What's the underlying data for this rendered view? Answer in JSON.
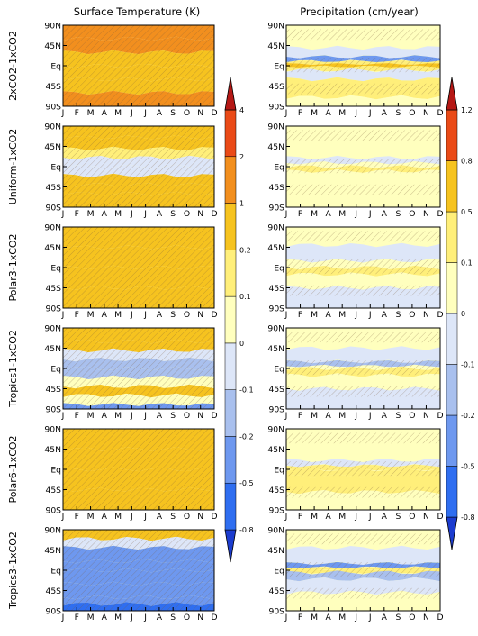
{
  "figure": {
    "col_titles": [
      "Surface Temperature (K)",
      "Precipitation (cm/year)"
    ],
    "row_labels": [
      "2xCO2-1xCO2",
      "Uniform-1xCO2",
      "Polar3-1xCO2",
      "Tropics1-1xCO2",
      "Polar6-1xCO2",
      "Tropics3-1xCO2"
    ]
  },
  "chart_data": [
    {
      "type": "heatmap",
      "title": "Surface Temperature (K)",
      "x_ticks": [
        "J",
        "F",
        "M",
        "A",
        "M",
        "J",
        "J",
        "A",
        "S",
        "O",
        "N",
        "D"
      ],
      "y_ticks": [
        "90N",
        "45N",
        "Eq",
        "45S",
        "90S"
      ],
      "colorbar": {
        "levels": [
          -0.8,
          -0.5,
          -0.2,
          -0.1,
          0,
          0.1,
          0.2,
          1,
          2,
          4
        ],
        "labels": [
          "-0.8",
          "-0.5",
          "-0.2",
          "-0.1",
          "0",
          "0.1",
          "0.2",
          "1",
          "2",
          "4"
        ],
        "colors": [
          "#1c3ccf",
          "#2f6ef0",
          "#6e98ef",
          "#a9c0ee",
          "#dde6f8",
          "#ffffbe",
          "#ffef7a",
          "#f6c31f",
          "#f28f1e",
          "#ea4a17",
          "#b51815"
        ]
      },
      "panels": [
        {
          "row": "2xCO2-1xCO2",
          "bands": [
            {
              "lat": 90,
              "v": 1.6
            },
            {
              "lat": 60,
              "v": 1.3
            },
            {
              "lat": 30,
              "v": 0.9
            },
            {
              "lat": 0,
              "v": 0.7
            },
            {
              "lat": -30,
              "v": 0.8
            },
            {
              "lat": -60,
              "v": 1.1
            },
            {
              "lat": -90,
              "v": 2.2
            }
          ]
        },
        {
          "row": "Uniform-1xCO2",
          "bands": [
            {
              "lat": 90,
              "v": 1.3
            },
            {
              "lat": 65,
              "v": 0.5
            },
            {
              "lat": 40,
              "v": 0.25
            },
            {
              "lat": 20,
              "v": 0.08
            },
            {
              "lat": 0,
              "v": -0.12
            },
            {
              "lat": -20,
              "v": 0.05
            },
            {
              "lat": -40,
              "v": 0.4
            },
            {
              "lat": -60,
              "v": 0.6
            },
            {
              "lat": -90,
              "v": 0.3
            }
          ]
        },
        {
          "row": "Polar3-1xCO2",
          "bands": [
            {
              "lat": 90,
              "v": 0.6
            },
            {
              "lat": 45,
              "v": 0.5
            },
            {
              "lat": 0,
              "v": 0.45
            },
            {
              "lat": -45,
              "v": 0.5
            },
            {
              "lat": -90,
              "v": 0.6
            }
          ]
        },
        {
          "row": "Tropics1-1xCO2",
          "bands": [
            {
              "lat": 90,
              "v": 1.3
            },
            {
              "lat": 60,
              "v": 0.4
            },
            {
              "lat": 40,
              "v": 0.05
            },
            {
              "lat": 20,
              "v": -0.15
            },
            {
              "lat": 0,
              "v": -0.12
            },
            {
              "lat": -20,
              "v": -0.1
            },
            {
              "lat": -40,
              "v": 0.15
            },
            {
              "lat": -60,
              "v": 0.3
            },
            {
              "lat": -80,
              "v": -0.1
            },
            {
              "lat": -90,
              "v": -0.4
            }
          ]
        },
        {
          "row": "Polar6-1xCO2",
          "bands": [
            {
              "lat": 90,
              "v": 1.0
            },
            {
              "lat": 45,
              "v": 0.7
            },
            {
              "lat": 0,
              "v": 0.6
            },
            {
              "lat": -45,
              "v": 0.7
            },
            {
              "lat": -90,
              "v": 1.0
            }
          ]
        },
        {
          "row": "Tropics3-1xCO2",
          "bands": [
            {
              "lat": 90,
              "v": 1.2
            },
            {
              "lat": 70,
              "v": 0.1
            },
            {
              "lat": 50,
              "v": -0.3
            },
            {
              "lat": 20,
              "v": -0.35
            },
            {
              "lat": 0,
              "v": -0.35
            },
            {
              "lat": -30,
              "v": -0.35
            },
            {
              "lat": -60,
              "v": -0.3
            },
            {
              "lat": -75,
              "v": -0.5
            },
            {
              "lat": -90,
              "v": -0.85
            }
          ]
        }
      ]
    },
    {
      "type": "heatmap",
      "title": "Precipitation (cm/year)",
      "x_ticks": [
        "J",
        "F",
        "M",
        "A",
        "M",
        "J",
        "J",
        "A",
        "S",
        "O",
        "N",
        "D"
      ],
      "y_ticks": [
        "90N",
        "45N",
        "Eq",
        "45S",
        "90S"
      ],
      "colorbar": {
        "levels": [
          -0.8,
          -0.5,
          -0.2,
          -0.1,
          0,
          0.1,
          0.5,
          0.8,
          1.2
        ],
        "labels": [
          "-0.8",
          "-0.5",
          "-0.2",
          "-0.1",
          "0",
          "0.1",
          "0.5",
          "0.8",
          "1.2"
        ],
        "colors": [
          "#1c3ccf",
          "#2f6ef0",
          "#6e98ef",
          "#a9c0ee",
          "#dde6f8",
          "#ffffbe",
          "#ffef7a",
          "#f6c31f",
          "#ea4a17",
          "#b51815"
        ]
      },
      "panels": [
        {
          "row": "2xCO2-1xCO2",
          "bands": [
            {
              "lat": 90,
              "v": 0.05
            },
            {
              "lat": 60,
              "v": 0.08
            },
            {
              "lat": 40,
              "v": -0.05
            },
            {
              "lat": 20,
              "v": -0.15
            },
            {
              "lat": 10,
              "v": -0.3
            },
            {
              "lat": 4,
              "v": 0.9
            },
            {
              "lat": -2,
              "v": 0.6
            },
            {
              "lat": -10,
              "v": -0.2
            },
            {
              "lat": -30,
              "v": 0.05
            },
            {
              "lat": -50,
              "v": 0.3
            },
            {
              "lat": -70,
              "v": 0.1
            },
            {
              "lat": -90,
              "v": 0.05
            }
          ]
        },
        {
          "row": "Uniform-1xCO2",
          "bands": [
            {
              "lat": 90,
              "v": 0.05
            },
            {
              "lat": 50,
              "v": 0.08
            },
            {
              "lat": 20,
              "v": 0.03
            },
            {
              "lat": 8,
              "v": -0.2
            },
            {
              "lat": 0,
              "v": 0.3
            },
            {
              "lat": -10,
              "v": 0.1
            },
            {
              "lat": -40,
              "v": 0.05
            },
            {
              "lat": -90,
              "v": 0.02
            }
          ]
        },
        {
          "row": "Polar3-1xCO2",
          "bands": [
            {
              "lat": 90,
              "v": 0.03
            },
            {
              "lat": 50,
              "v": 0.05
            },
            {
              "lat": 15,
              "v": -0.08
            },
            {
              "lat": 0,
              "v": 0.15
            },
            {
              "lat": -15,
              "v": 0.08
            },
            {
              "lat": -45,
              "v": -0.08
            },
            {
              "lat": -90,
              "v": 0.02
            }
          ]
        },
        {
          "row": "Tropics1-1xCO2",
          "bands": [
            {
              "lat": 90,
              "v": 0.03
            },
            {
              "lat": 45,
              "v": 0.06
            },
            {
              "lat": 15,
              "v": -0.1
            },
            {
              "lat": 5,
              "v": -0.3
            },
            {
              "lat": 0,
              "v": 0.3
            },
            {
              "lat": -15,
              "v": 0.05
            },
            {
              "lat": -45,
              "v": -0.05
            },
            {
              "lat": -90,
              "v": 0.02
            }
          ]
        },
        {
          "row": "Polar6-1xCO2",
          "bands": [
            {
              "lat": 90,
              "v": 0.05
            },
            {
              "lat": 55,
              "v": 0.08
            },
            {
              "lat": 20,
              "v": 0.05
            },
            {
              "lat": 8,
              "v": -0.2
            },
            {
              "lat": 0,
              "v": 0.4
            },
            {
              "lat": -15,
              "v": 0.1
            },
            {
              "lat": -50,
              "v": 0.1
            },
            {
              "lat": -90,
              "v": 0.03
            }
          ]
        },
        {
          "row": "Tropics3-1xCO2",
          "bands": [
            {
              "lat": 90,
              "v": 0.03
            },
            {
              "lat": 50,
              "v": 0.05
            },
            {
              "lat": 15,
              "v": -0.1
            },
            {
              "lat": 6,
              "v": -0.4
            },
            {
              "lat": 2,
              "v": 0.9
            },
            {
              "lat": -5,
              "v": -0.3
            },
            {
              "lat": -20,
              "v": -0.1
            },
            {
              "lat": -50,
              "v": 0.02
            },
            {
              "lat": -90,
              "v": 0.02
            }
          ]
        }
      ]
    }
  ]
}
